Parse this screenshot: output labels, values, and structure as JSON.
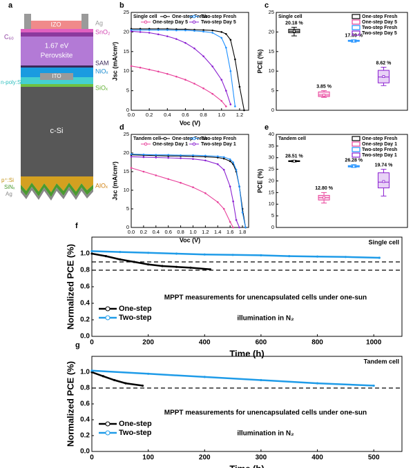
{
  "stack": {
    "panel": "a",
    "layers": {
      "izo": "IZO",
      "ag_top": "Ag",
      "sno2": "SnO₂",
      "c60": "C₆₀",
      "gap": "1.67 eV",
      "perovskite": "Perovskite",
      "sam": "SAM",
      "niox": "NiOₓ",
      "ito": "ITO",
      "npoly": "n-poly:Si",
      "siox": "SiOₓ",
      "csi": "c-Si",
      "psi": "p⁺:Si",
      "sinx": "SiNₓ",
      "ag_bottom": "Ag",
      "alox": "AlOₓ"
    }
  },
  "chart_data": [
    {
      "type": "line",
      "panel": "b",
      "title": "Single cell",
      "xlabel": "Voc (V)",
      "ylabel": "Jsc (mA/cm²)",
      "legend": "top",
      "xlim": [
        0,
        1.3
      ],
      "xticks": [
        {
          "value": 0,
          "label": "0.0"
        },
        0.2,
        0.4,
        0.6,
        0.8,
        {
          "value": 1,
          "label": "1.0"
        },
        1.2
      ],
      "ylim": [
        0,
        25
      ],
      "yticks": [
        0,
        5,
        10,
        15,
        20,
        25
      ],
      "x": [
        0,
        0.1,
        0.2,
        0.3,
        0.4,
        0.5,
        0.6,
        0.7,
        0.8,
        0.9,
        1.0,
        1.05,
        1.1,
        1.15,
        1.2,
        1.25
      ],
      "series": [
        {
          "name": "One-step Fresh",
          "color": "#000000",
          "values": [
            20.8,
            20.8,
            20.8,
            20.8,
            20.8,
            20.7,
            20.7,
            20.6,
            20.5,
            20.4,
            20.0,
            19.5,
            18.0,
            13.0,
            6.0,
            0
          ]
        },
        {
          "name": "Two-step Fresh",
          "color": "#1e90ff",
          "values": [
            20.5,
            20.5,
            20.5,
            20.5,
            20.5,
            20.4,
            20.4,
            20.3,
            20.1,
            19.8,
            18.5,
            16.0,
            10.0,
            1.0,
            null,
            null
          ]
        },
        {
          "name": "One-step Day 5",
          "color": "#e8409a",
          "values": [
            11.3,
            10.9,
            10.4,
            9.9,
            9.3,
            8.6,
            7.8,
            6.8,
            5.6,
            4.2,
            2.4,
            1.0,
            null,
            null,
            null,
            null
          ]
        },
        {
          "name": "Two-step Day 5",
          "color": "#8a1fd0",
          "values": [
            20.2,
            20.0,
            19.8,
            19.4,
            18.9,
            18.2,
            17.2,
            15.8,
            13.8,
            11.2,
            7.8,
            5.0,
            1.5,
            null,
            null,
            null
          ]
        }
      ]
    },
    {
      "type": "box",
      "panel": "c",
      "title": "Single cell",
      "ylabel": "PCE (%)",
      "legend": "upper right",
      "ylim": [
        0,
        25
      ],
      "yticks": [
        0,
        5,
        10,
        15,
        20,
        25
      ],
      "series": [
        {
          "name": "One-step Fresh",
          "color": "#000000",
          "whisker_low": 19.0,
          "q1": 19.8,
          "median": 20.2,
          "q3": 20.7,
          "whisker_high": 21.2,
          "mean": 20.18,
          "mean_label": "20.18 %"
        },
        {
          "name": "One-step Day 5",
          "color": "#e8409a",
          "whisker_low": 3.3,
          "q1": 3.5,
          "median": 3.9,
          "q3": 4.7,
          "whisker_high": 5.0,
          "mean": 3.85,
          "mean_label": "3.85 %"
        },
        {
          "name": "Two-step Fresh",
          "color": "#1e90ff",
          "whisker_low": 17.4,
          "q1": 17.6,
          "median": 17.7,
          "q3": 17.9,
          "whisker_high": 18.0,
          "mean": 17.69,
          "mean_label": "17.69 %"
        },
        {
          "name": "Two-step Day 5",
          "color": "#8a1fd0",
          "whisker_low": 6.3,
          "q1": 7.0,
          "median": 8.5,
          "q3": 10.2,
          "whisker_high": 11.0,
          "mean": 8.62,
          "mean_label": "8.62 %"
        }
      ]
    },
    {
      "type": "line",
      "panel": "d",
      "title": "Tandem cell",
      "xlabel": "Voc (V)",
      "ylabel": "Jsc (mA/cm²)",
      "legend": "top",
      "xlim": [
        0,
        1.9
      ],
      "xticks": [
        {
          "value": 0,
          "label": "0.0"
        },
        0.2,
        0.4,
        0.6,
        0.8,
        {
          "value": 1,
          "label": "1.0"
        },
        1.2,
        1.4,
        1.6,
        1.8
      ],
      "ylim": [
        0,
        25
      ],
      "yticks": [
        0,
        5,
        10,
        15,
        20,
        25
      ],
      "x": [
        0,
        0.2,
        0.4,
        0.6,
        0.8,
        1.0,
        1.2,
        1.4,
        1.5,
        1.6,
        1.65,
        1.7,
        1.75,
        1.8,
        1.85
      ],
      "series": [
        {
          "name": "One-step Fresh",
          "color": "#000000",
          "values": [
            19.5,
            19.4,
            19.3,
            19.2,
            19.2,
            19.1,
            19.0,
            18.8,
            18.5,
            17.8,
            17.0,
            15.0,
            11.0,
            5.0,
            0
          ]
        },
        {
          "name": "Two-step Fresh",
          "color": "#1e90ff",
          "values": [
            19.7,
            19.6,
            19.5,
            19.5,
            19.4,
            19.4,
            19.3,
            19.1,
            18.9,
            18.3,
            17.5,
            15.5,
            11.0,
            4.0,
            0
          ]
        },
        {
          "name": "One-step Day 1",
          "color": "#e8409a",
          "values": [
            16.0,
            15.0,
            14.0,
            13.0,
            12.0,
            10.8,
            9.2,
            6.8,
            5.0,
            1.5,
            0,
            null,
            null,
            null,
            null
          ]
        },
        {
          "name": "Two-step Day 1",
          "color": "#8a1fd0",
          "values": [
            19.0,
            18.9,
            18.8,
            18.7,
            18.6,
            18.4,
            18.0,
            17.0,
            15.5,
            11.0,
            7.0,
            2.0,
            0,
            null,
            null
          ]
        }
      ]
    },
    {
      "type": "box",
      "panel": "e",
      "title": "Tandem cell",
      "ylabel": "PCE (%)",
      "legend": "upper right",
      "ylim": [
        0,
        40
      ],
      "yticks": [
        0,
        5,
        10,
        15,
        20,
        25,
        30,
        35,
        40
      ],
      "series": [
        {
          "name": "One-step Fresh",
          "color": "#000000",
          "whisker_low": 28.2,
          "q1": 28.3,
          "median": 28.5,
          "q3": 28.7,
          "whisker_high": 28.8,
          "mean": 28.51,
          "mean_label": "28.51 %"
        },
        {
          "name": "One-step Day 1",
          "color": "#e8409a",
          "whisker_low": 10.5,
          "q1": 11.8,
          "median": 12.8,
          "q3": 13.8,
          "whisker_high": 15.0,
          "mean": 12.8,
          "mean_label": "12.80 %"
        },
        {
          "name": "Two-step Fresh",
          "color": "#1e90ff",
          "whisker_low": 25.8,
          "q1": 26.0,
          "median": 26.3,
          "q3": 26.6,
          "whisker_high": 27.0,
          "mean": 26.28,
          "mean_label": "26.28 %"
        },
        {
          "name": "Two-step Day 1",
          "color": "#8a1fd0",
          "whisker_low": 13.5,
          "q1": 17.0,
          "median": 19.5,
          "q3": 23.5,
          "whisker_high": 25.0,
          "mean": 19.74,
          "mean_label": "19.74 %"
        }
      ]
    },
    {
      "type": "line",
      "panel": "f",
      "annotation": "Single cell",
      "xlabel": "Time (h)",
      "ylabel": "Normalized PCE (%)",
      "legend": "lower left",
      "notes": [
        "MPPT measurements for unencapsulated cells under one-sun",
        "illumination in N₂"
      ],
      "xlim": [
        0,
        1100
      ],
      "xticks": [
        0,
        200,
        400,
        600,
        800,
        1000
      ],
      "ylim": [
        0,
        1.2
      ],
      "yticks": [
        {
          "value": 0,
          "label": "0.0"
        },
        0.2,
        0.4,
        0.6,
        0.8,
        {
          "value": 1,
          "label": "1.0"
        }
      ],
      "hlines": [
        0.9,
        0.8
      ],
      "series": [
        {
          "name": "One-step",
          "color": "#000000",
          "x": [
            0,
            50,
            100,
            150,
            200,
            250,
            300,
            350,
            420
          ],
          "values": [
            1.0,
            0.97,
            0.93,
            0.9,
            0.87,
            0.85,
            0.84,
            0.83,
            0.81
          ]
        },
        {
          "name": "Two-step",
          "color": "#1e9be8",
          "x": [
            0,
            100,
            200,
            300,
            400,
            500,
            600,
            700,
            800,
            900,
            1020
          ],
          "values": [
            1.03,
            1.02,
            1.01,
            1.0,
            0.99,
            0.985,
            0.98,
            0.97,
            0.965,
            0.96,
            0.95
          ]
        }
      ]
    },
    {
      "type": "line",
      "panel": "g",
      "annotation": "Tandem cell",
      "xlabel": "Time (h)",
      "ylabel": "Normalized PCE (%)",
      "legend": "lower left",
      "notes": [
        "MPPT measurements for unencapsulated cells under one-sun",
        "illumination in N₂"
      ],
      "xlim": [
        0,
        550
      ],
      "xticks": [
        0,
        100,
        200,
        300,
        400,
        500
      ],
      "ylim": [
        0,
        1.2
      ],
      "yticks": [
        {
          "value": 0,
          "label": "0.0"
        },
        0.2,
        0.4,
        0.6,
        0.8,
        {
          "value": 1,
          "label": "1.0"
        }
      ],
      "hlines": [
        0.8
      ],
      "series": [
        {
          "name": "One-step",
          "color": "#000000",
          "x": [
            0,
            20,
            40,
            60,
            90
          ],
          "values": [
            1.0,
            0.95,
            0.9,
            0.86,
            0.83
          ]
        },
        {
          "name": "Two-step",
          "color": "#1e9be8",
          "x": [
            0,
            100,
            200,
            300,
            400,
            500
          ],
          "values": [
            1.02,
            0.98,
            0.94,
            0.9,
            0.86,
            0.83
          ]
        }
      ]
    }
  ]
}
